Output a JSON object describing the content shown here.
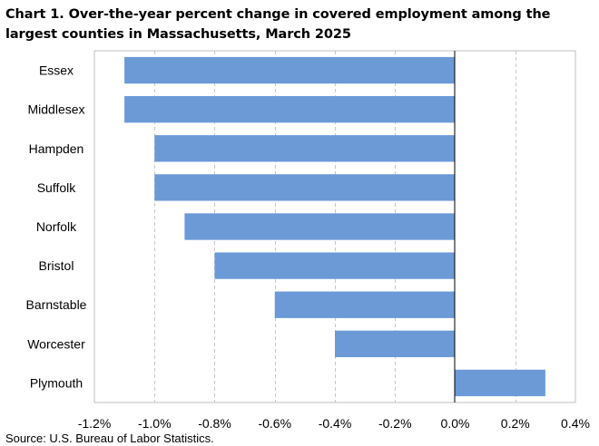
{
  "header": {
    "title": "Chart 1. Over-the-year percent change in covered employment among the largest counties in Massachusetts, March 2025"
  },
  "footer": {
    "source": "Source: U.S. Bureau of Labor Statistics."
  },
  "colors": {
    "bar": "#6b9ad7",
    "grid": "#c8c8c8",
    "zero_line": "#000000",
    "frame": "#bfbfbf"
  },
  "chart_data": {
    "type": "bar",
    "orientation": "horizontal",
    "title": "Chart 1. Over-the-year percent change in covered employment among the largest counties in Massachusetts, March 2025",
    "categories": [
      "Essex",
      "Middlesex",
      "Hampden",
      "Suffolk",
      "Norfolk",
      "Bristol",
      "Barnstable",
      "Worcester",
      "Plymouth"
    ],
    "values": [
      -1.1,
      -1.1,
      -1.0,
      -1.0,
      -0.9,
      -0.8,
      -0.6,
      -0.4,
      0.3
    ],
    "value_unit": "percent",
    "xlim": [
      -1.2,
      0.4
    ],
    "x_ticks": [
      -1.2,
      -1.0,
      -0.8,
      -0.6,
      -0.4,
      -0.2,
      0.0,
      0.2,
      0.4
    ],
    "x_tick_labels": [
      "-1.2%",
      "-1.0%",
      "-0.8%",
      "-0.6%",
      "-0.4%",
      "-0.2%",
      "0.0%",
      "0.2%",
      "0.4%"
    ],
    "gridlines": "vertical, dashed",
    "legend": "none",
    "xlabel": "",
    "ylabel": ""
  }
}
